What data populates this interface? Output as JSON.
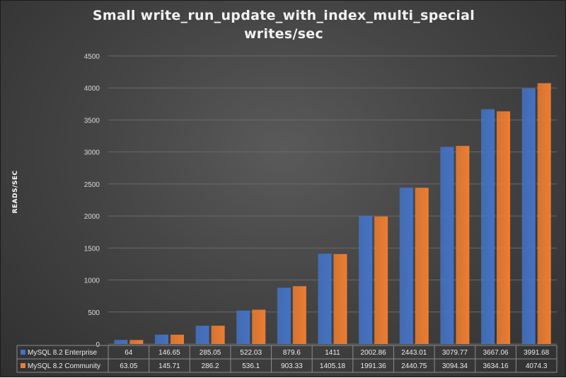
{
  "chart_data": {
    "type": "bar",
    "title": "Small  write_run_update_with_index_multi_special",
    "subtitle": "writes/sec",
    "xlabel": "",
    "ylabel": "READS/SEC",
    "ylim": [
      0,
      4500
    ],
    "yticks": [
      "0",
      "500",
      "1000",
      "1500",
      "2000",
      "2500",
      "3000",
      "3500",
      "4000",
      "4500"
    ],
    "grid": true,
    "legend": "data-table-bottom",
    "series": [
      {
        "name": "MySQL 8.2 Enterprise",
        "color": "#4472c4",
        "values": [
          64,
          146.65,
          285.05,
          522.03,
          879.6,
          1411,
          2002.86,
          2443.01,
          3079.77,
          3667.06,
          3991.68
        ],
        "labels": [
          "64",
          "146.65",
          "285.05",
          "522.03",
          "879.6",
          "1411",
          "2002.86",
          "2443.01",
          "3079.77",
          "3667.06",
          "3991.68"
        ]
      },
      {
        "name": "MySQL 8.2 Community",
        "color": "#ed7d31",
        "values": [
          63.05,
          145.71,
          286.2,
          536.1,
          903.33,
          1405.18,
          1991.36,
          2440.75,
          3094.34,
          3634.16,
          4074.3
        ],
        "labels": [
          "63.05",
          "145.71",
          "286.2",
          "536.1",
          "903.33",
          "1405.18",
          "1991.36",
          "2440.75",
          "3094.34",
          "3634.16",
          "4074.3"
        ]
      }
    ]
  }
}
